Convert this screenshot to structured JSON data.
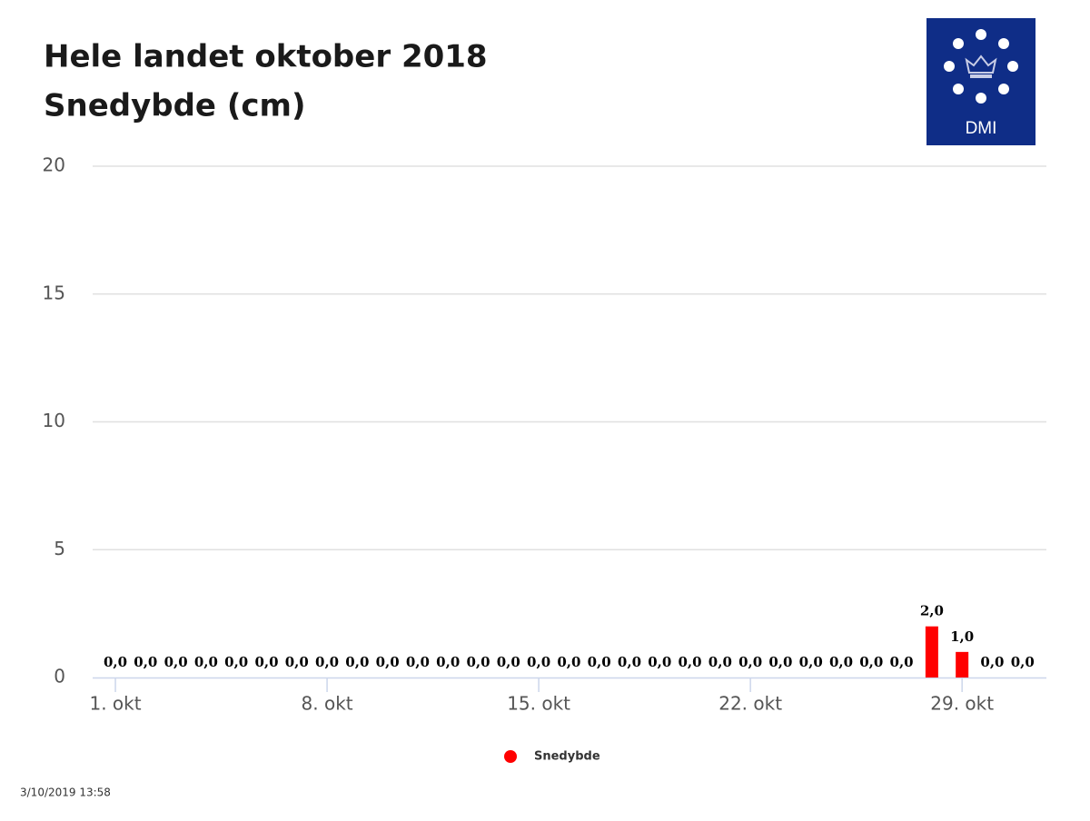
{
  "chart_data": {
    "type": "bar",
    "title": "Hele landet oktober 2018",
    "subtitle": "Snedybde (cm)",
    "categories": [
      "1. okt",
      null,
      null,
      null,
      null,
      null,
      null,
      "8. okt",
      null,
      null,
      null,
      null,
      null,
      null,
      "15. okt",
      null,
      null,
      null,
      null,
      null,
      null,
      "22. okt",
      null,
      null,
      null,
      null,
      null,
      null,
      "29. okt",
      null,
      null
    ],
    "series": [
      {
        "name": "Snedybde",
        "color": "#ff0000",
        "values": [
          0,
          0,
          0,
          0,
          0,
          0,
          0,
          0,
          0,
          0,
          0,
          0,
          0,
          0,
          0,
          0,
          0,
          0,
          0,
          0,
          0,
          0,
          0,
          0,
          0,
          0,
          0,
          2,
          1,
          0,
          0
        ],
        "value_labels": [
          "0,0",
          "0,0",
          "0,0",
          "0,0",
          "0,0",
          "0,0",
          "0,0",
          "0,0",
          "0,0",
          "0,0",
          "0,0",
          "0,0",
          "0,0",
          "0,0",
          "0,0",
          "0,0",
          "0,0",
          "0,0",
          "0,0",
          "0,0",
          "0,0",
          "0,0",
          "0,0",
          "0,0",
          "0,0",
          "0,0",
          "0,0",
          "2,0",
          "1,0",
          "0,0",
          "0,0"
        ]
      }
    ],
    "ylim": [
      0,
      20
    ],
    "yticks": [
      0,
      5,
      10,
      15,
      20
    ],
    "grid": true,
    "legend": "bottom"
  },
  "logo": {
    "text": "DMI"
  },
  "footer": "3/10/2019 13:58"
}
